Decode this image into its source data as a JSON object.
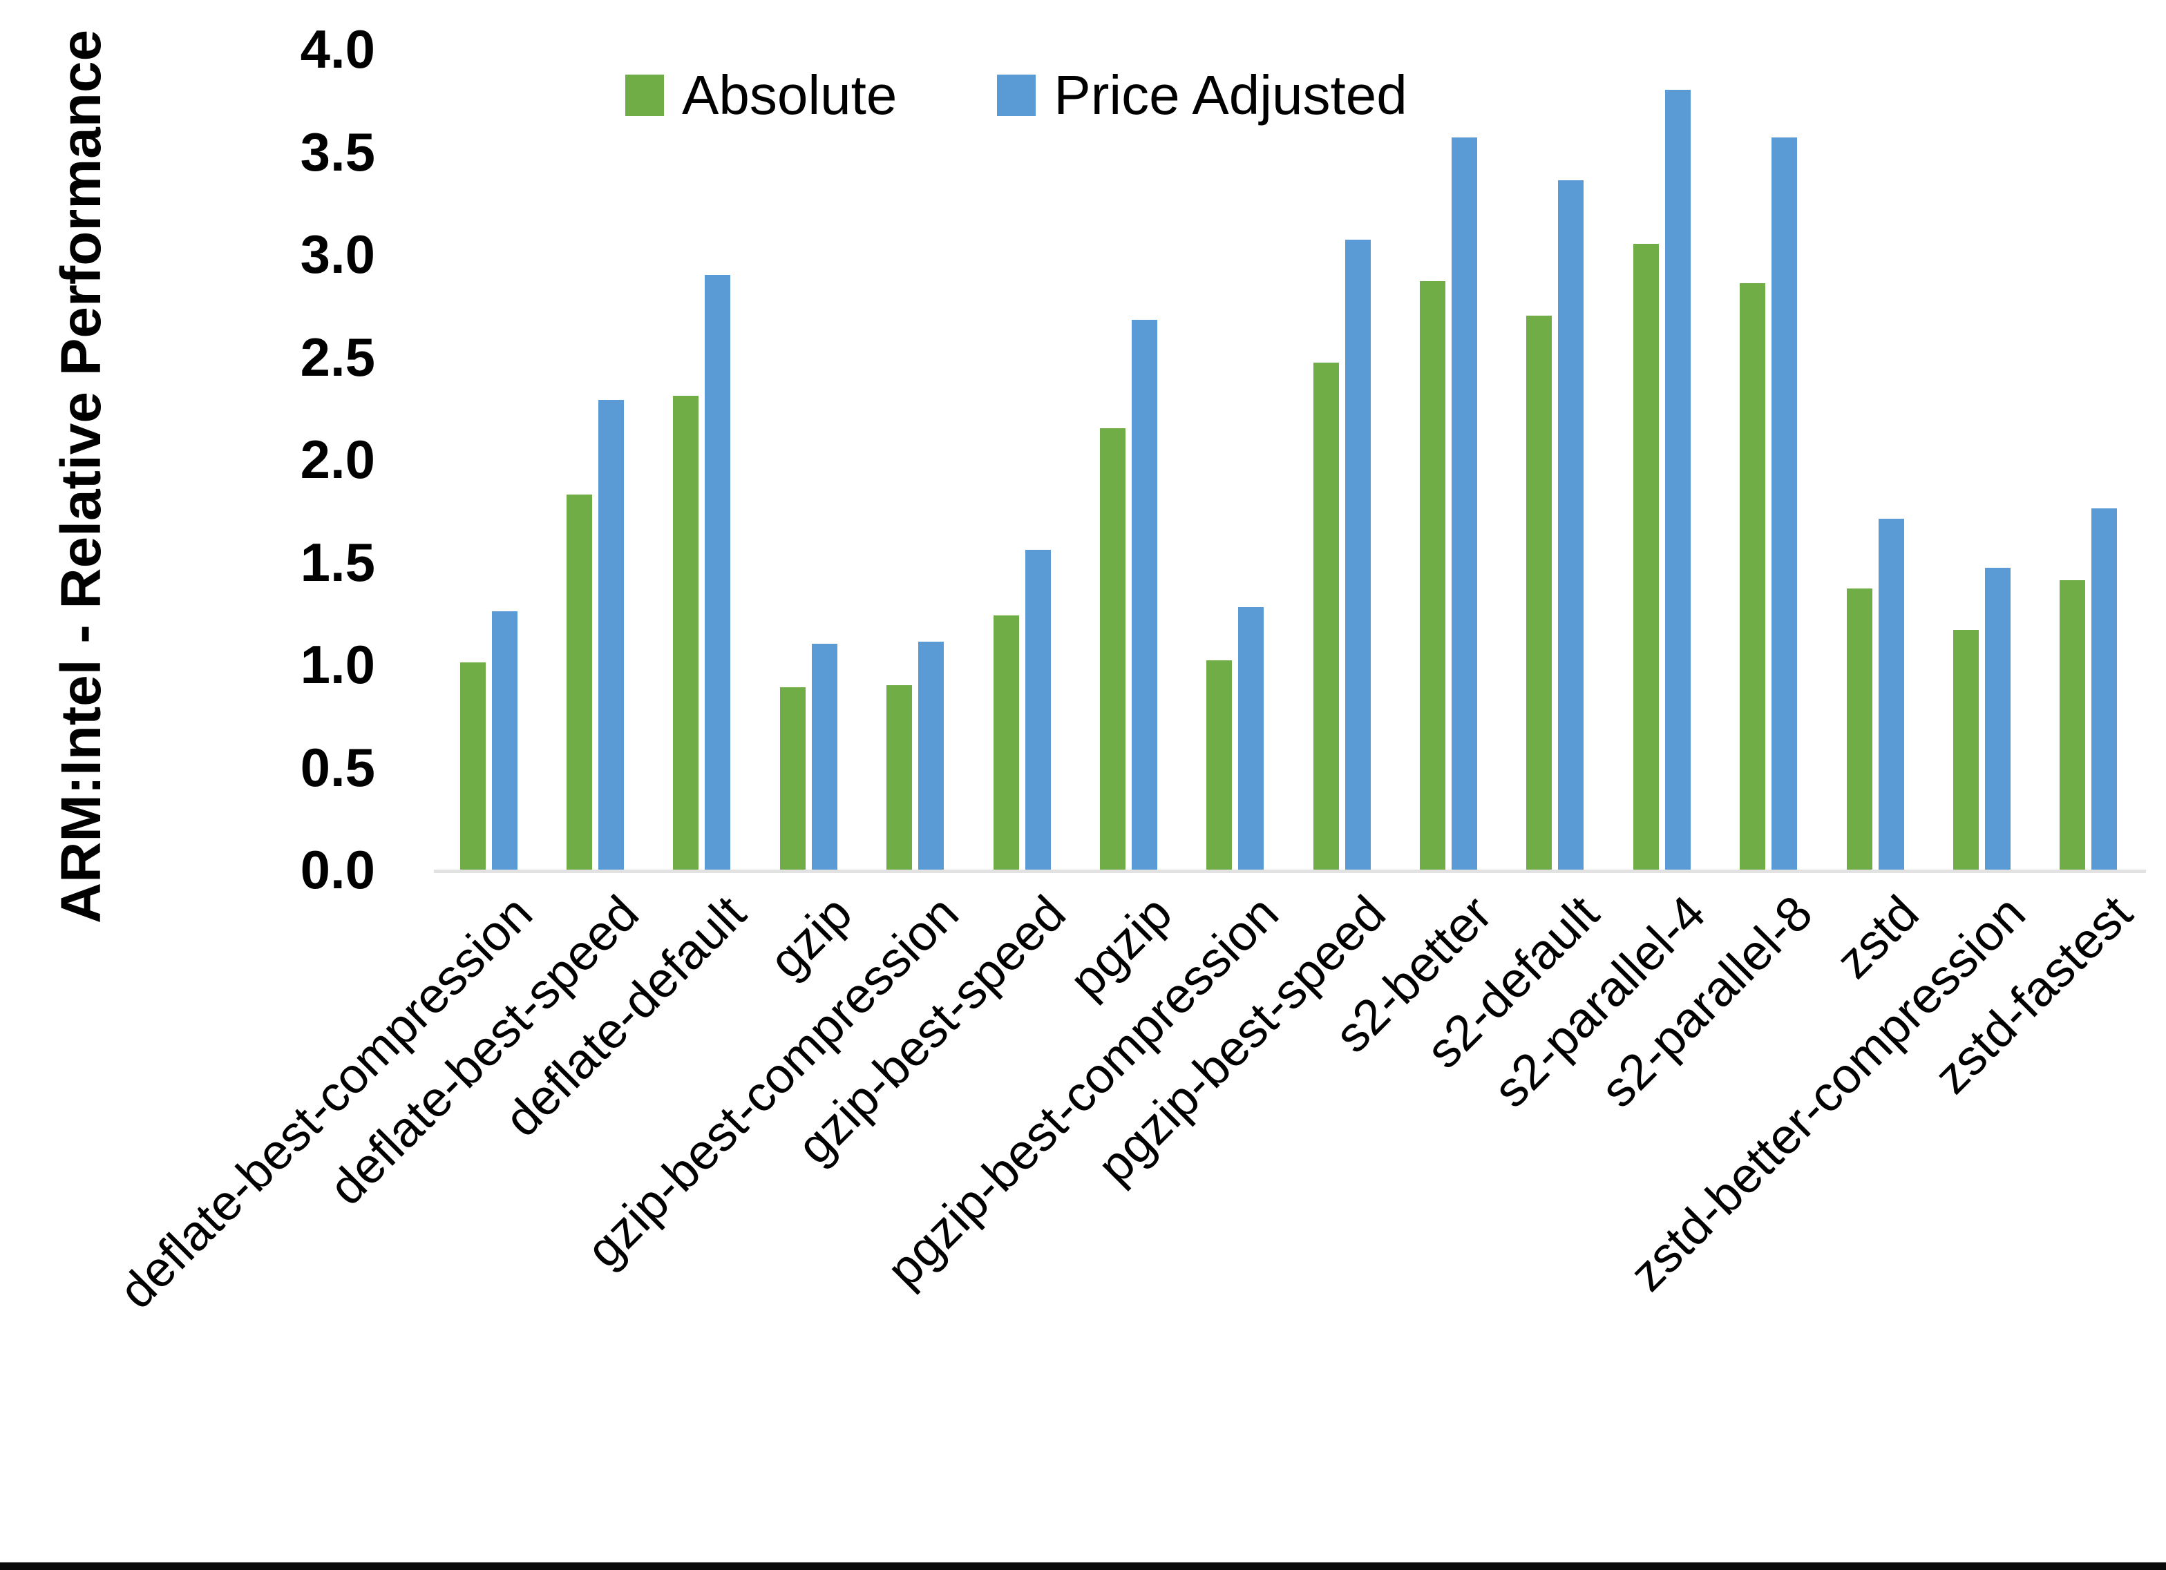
{
  "chart_data": {
    "type": "bar",
    "title": "",
    "ylabel": "ARM:Intel - Relative Performance",
    "xlabel": "",
    "ylim": [
      0.0,
      4.0
    ],
    "ytick_labels": [
      "4.0",
      "3.5",
      "3.0",
      "2.5",
      "2.0",
      "1.5",
      "1.0",
      "0.5",
      "0.0"
    ],
    "grid": false,
    "legend_position": "top",
    "categories": [
      "deflate-best-compression",
      "deflate-best-speed",
      "deflate-default",
      "gzip",
      "gzip-best-compression",
      "gzip-best-speed",
      "pgzip",
      "pgzip-best-compression",
      "pgzip-best-speed",
      "s2-better",
      "s2-default",
      "s2-parallel-4",
      "s2-parallel-8",
      "zstd",
      "zstd-better-compression",
      "zstd-fastest"
    ],
    "series": [
      {
        "name": "Absolute",
        "color": "#70AD47",
        "values": [
          1.01,
          1.83,
          2.31,
          0.89,
          0.9,
          1.24,
          2.15,
          1.02,
          2.47,
          2.87,
          2.7,
          3.05,
          2.86,
          1.37,
          1.17,
          1.41
        ]
      },
      {
        "name": "Price Adjusted",
        "color": "#5B9BD5",
        "values": [
          1.26,
          2.29,
          2.9,
          1.1,
          1.11,
          1.56,
          2.68,
          1.28,
          3.07,
          3.57,
          3.36,
          3.8,
          3.57,
          1.71,
          1.47,
          1.76
        ]
      }
    ]
  },
  "colors": {
    "background": "#ffffff",
    "axis_line": "#e2e2e2",
    "text": "#000000",
    "bottom_strip": "#0a0a0a"
  }
}
